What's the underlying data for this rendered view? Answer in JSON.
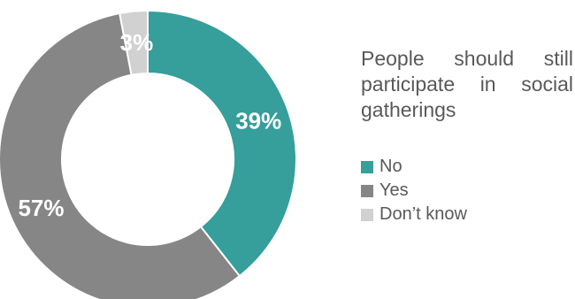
{
  "chart_data": {
    "type": "pie",
    "subtype": "donut",
    "title": "People should still participate in social gatherings",
    "categories": [
      "No",
      "Yes",
      "Don’t know"
    ],
    "values": [
      39,
      57,
      3
    ],
    "value_labels": [
      "39%",
      "57%",
      "3%"
    ],
    "colors": [
      "#369e9b",
      "#868686",
      "#d1d1d1"
    ],
    "start_angle_deg": 0,
    "direction": "clockwise",
    "legend_position": "right"
  }
}
